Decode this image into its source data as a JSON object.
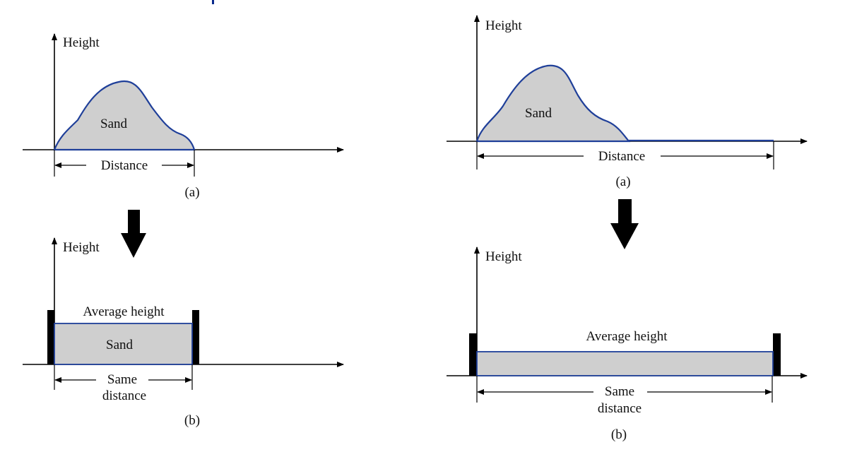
{
  "colors": {
    "sand_fill": "#cfcfcf",
    "sand_outline": "#1f3f99",
    "axis": "#000000",
    "text": "#111111",
    "top_accent": "#0a2a8c"
  },
  "left_figure": {
    "top_panel": {
      "y_axis_label": "Height",
      "shape_label": "Sand",
      "dimension_label": "Distance",
      "caption": "(a)"
    },
    "bottom_panel": {
      "y_axis_label": "Height",
      "top_label": "Average height",
      "shape_label": "Sand",
      "dimension_label_line1": "Same",
      "dimension_label_line2": "distance",
      "caption": "(b)"
    }
  },
  "right_figure": {
    "top_panel": {
      "y_axis_label": "Height",
      "shape_label": "Sand",
      "dimension_label": "Distance",
      "caption": "(a)"
    },
    "bottom_panel": {
      "y_axis_label": "Height",
      "top_label": "Average height",
      "dimension_label_line1": "Same",
      "dimension_label_line2": "distance",
      "caption": "(b)"
    }
  }
}
